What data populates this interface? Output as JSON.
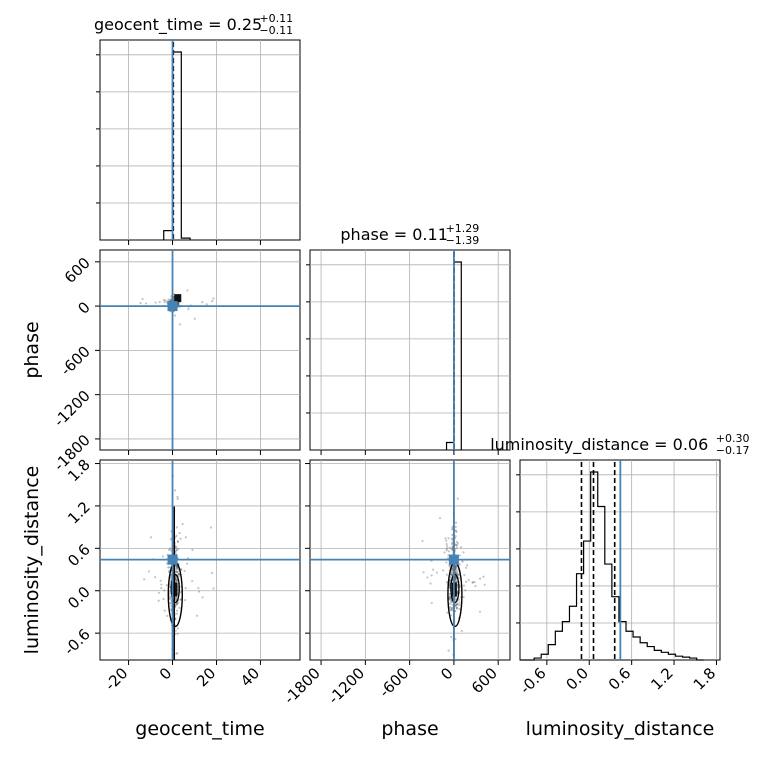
{
  "chart_data": {
    "type": "corner",
    "grid": true,
    "truth_color": "#4682b4",
    "parameters": [
      "geocent_time",
      "phase",
      "luminosity_distance"
    ],
    "truths": {
      "geocent_time": 0.0,
      "phase": 0.0,
      "luminosity_distance": 0.44
    },
    "ranges": {
      "geocent_time": [
        -33,
        58
      ],
      "phase": [
        -1950,
        760
      ],
      "luminosity_distance": [
        -0.98,
        1.85
      ]
    },
    "ticks": {
      "geocent_time": [
        "-20",
        "0",
        "20",
        "40"
      ],
      "phase": [
        "-1800",
        "-1200",
        "-600",
        "0",
        "600"
      ],
      "luminosity_distance": [
        "-0.6",
        "0.0",
        "0.6",
        "1.2",
        "1.8"
      ]
    },
    "titles": {
      "geocent_time": {
        "main": "geocent_time = 0.25",
        "sup": "+0.11",
        "sub": "−0.11"
      },
      "phase": {
        "main": "phase = 0.11",
        "sup": "+1.29",
        "sub": "−1.39"
      },
      "luminosity_distance": {
        "main": "luminosity_distance = 0.06",
        "sup": "+0.30",
        "sub": "−0.17"
      }
    },
    "axis_labels": {
      "geocent_time": "geocent_time",
      "phase": "phase",
      "luminosity_distance": "luminosity_distance"
    },
    "quantiles": {
      "geocent_time": [
        0.14,
        0.25,
        0.36
      ],
      "phase": [
        -1.28,
        0.11,
        1.4
      ],
      "luminosity_distance": [
        -0.11,
        0.06,
        0.36
      ]
    },
    "histograms": {
      "geocent_time": {
        "edges": [
          -4,
          0,
          4,
          8
        ],
        "values": [
          0.05,
          1.0,
          0.01
        ]
      },
      "phase": {
        "edges": [
          -100,
          0,
          100
        ],
        "values": [
          0.04,
          1.0
        ]
      },
      "luminosity_distance": {
        "edges": [
          -0.98,
          -0.88,
          -0.78,
          -0.68,
          -0.58,
          -0.48,
          -0.38,
          -0.28,
          -0.18,
          -0.08,
          0.02,
          0.12,
          0.22,
          0.32,
          0.42,
          0.52,
          0.62,
          0.72,
          0.82,
          0.92,
          1.02,
          1.12,
          1.22,
          1.32,
          1.42,
          1.52,
          1.62
        ],
        "values": [
          0,
          0,
          0.01,
          0.03,
          0.08,
          0.15,
          0.2,
          0.28,
          0.45,
          0.62,
          0.98,
          0.8,
          0.5,
          0.33,
          0.2,
          0.15,
          0.12,
          0.09,
          0.07,
          0.05,
          0.04,
          0.03,
          0.02,
          0.015,
          0.01,
          0
        ]
      }
    }
  }
}
